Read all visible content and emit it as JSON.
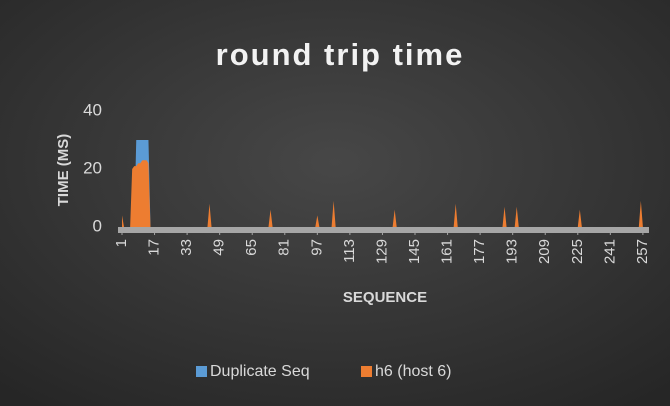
{
  "chart_data": {
    "type": "area",
    "title": "round trip time",
    "x_label": "SEQUENCE",
    "y_label": "TIME (MS)",
    "x": [
      1,
      2,
      3,
      5,
      6,
      7,
      8,
      9,
      10,
      11,
      12,
      13,
      14,
      15,
      43,
      44,
      45,
      73,
      74,
      75,
      96,
      97,
      98,
      104,
      105,
      106,
      134,
      135,
      136,
      164,
      165,
      166,
      188,
      189,
      190,
      194,
      195,
      196,
      225,
      226,
      227,
      255,
      256,
      257,
      260
    ],
    "series": [
      {
        "name": "Duplicate Seq",
        "color": "#5b9bd5",
        "values": [
          0,
          0,
          0,
          0,
          0,
          0,
          30,
          30,
          30,
          30,
          30,
          30,
          30,
          0,
          0,
          0,
          0,
          0,
          0,
          0,
          0,
          0,
          0,
          0,
          0,
          0,
          0,
          0,
          0,
          0,
          0,
          0,
          0,
          0,
          0,
          0,
          0,
          0,
          0,
          0,
          0,
          0,
          0,
          0,
          0
        ]
      },
      {
        "name": "h6 (host 6)",
        "color": "#ed7d31",
        "values": [
          4,
          0,
          0,
          0,
          20,
          21,
          21,
          22,
          22,
          23,
          23,
          23,
          22,
          0,
          0,
          8,
          0,
          0,
          6,
          0,
          0,
          4,
          0,
          0,
          9,
          0,
          0,
          6,
          0,
          0,
          8,
          0,
          0,
          7,
          0,
          0,
          7,
          0,
          0,
          6,
          0,
          0,
          9,
          0,
          0
        ]
      }
    ],
    "xlim": [
      1,
      260
    ],
    "xticks": [
      1,
      17,
      33,
      49,
      65,
      81,
      97,
      113,
      129,
      145,
      161,
      177,
      193,
      209,
      225,
      241,
      257
    ],
    "ylim": [
      0,
      40
    ],
    "yticks": [
      0,
      20,
      40
    ],
    "legend": "bottom"
  }
}
